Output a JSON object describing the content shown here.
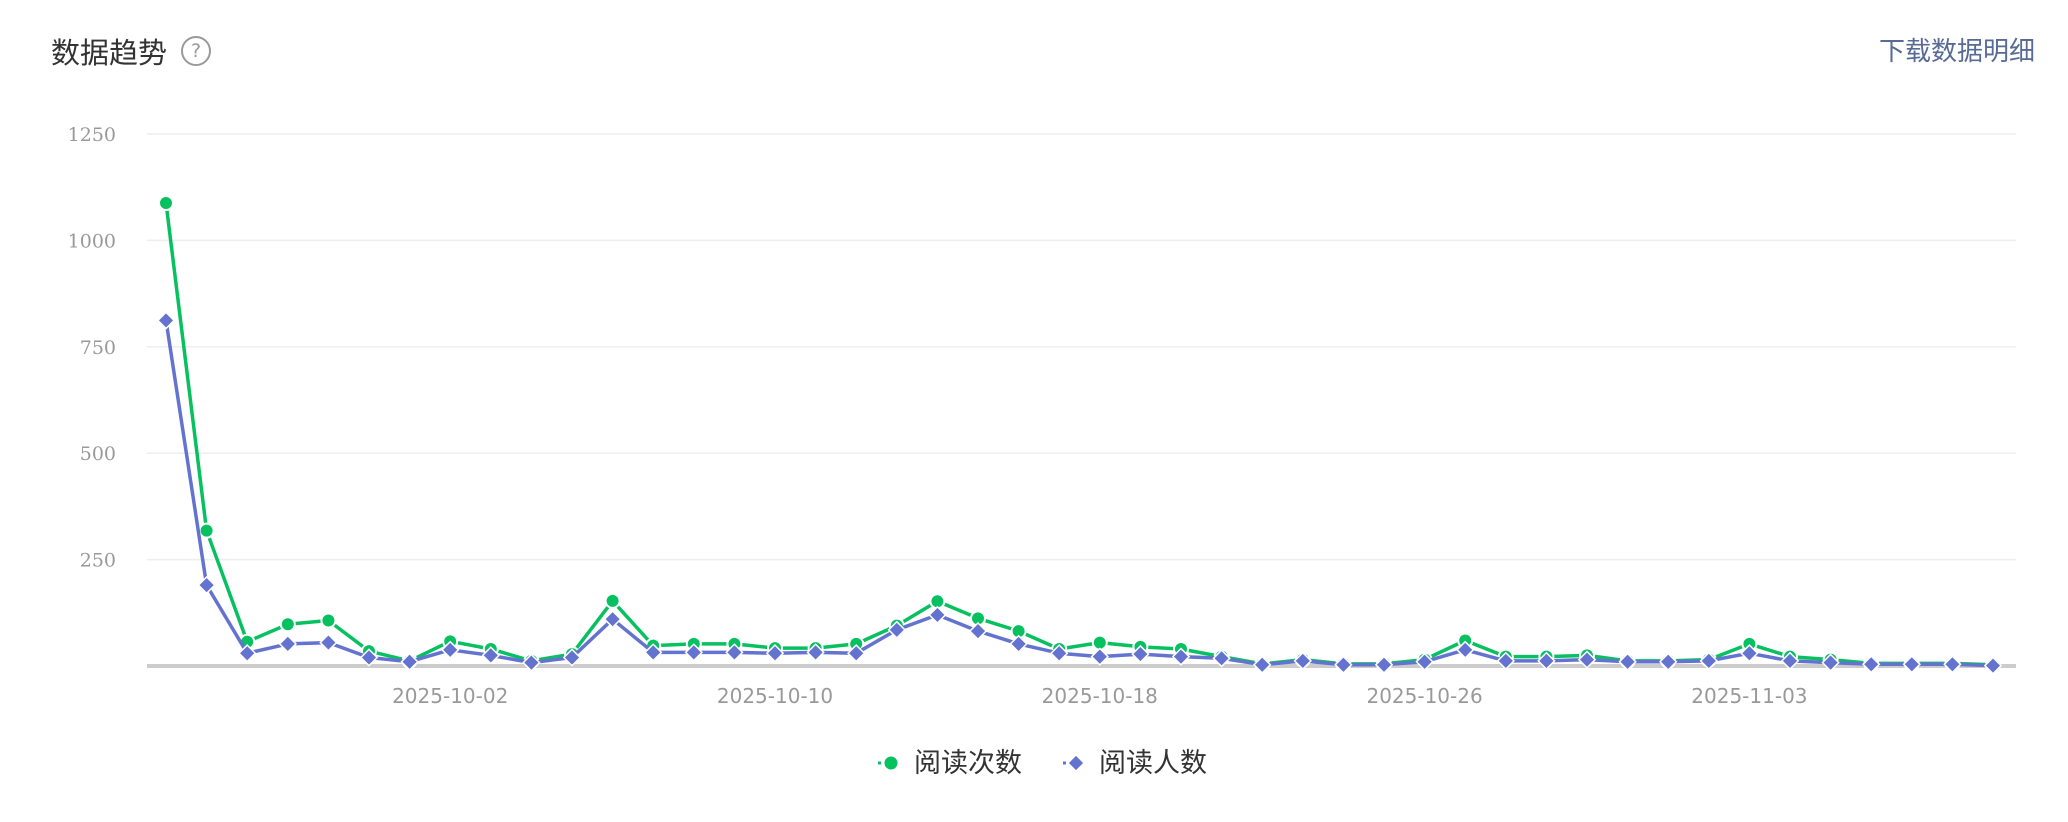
{
  "header": {
    "title": "数据趋势",
    "help_icon": "question-circle-icon",
    "help_glyph": "?",
    "download_label": "下载数据明细"
  },
  "colors": {
    "series_read_count": "#07c160",
    "series_reader_count": "#6473cf",
    "grid": "#eeeeee",
    "axis": "#cccccc",
    "link": "#576b95"
  },
  "chart_data": {
    "type": "line",
    "x_start": "2025-09-25",
    "x_tick_labels": [
      "2025-10-02",
      "2025-10-10",
      "2025-10-18",
      "2025-10-26",
      "2025-11-03"
    ],
    "y_ticks": [
      250,
      500,
      750,
      1000,
      1250
    ],
    "ylim": [
      0,
      1250
    ],
    "grid": true,
    "legend_position": "bottom-center",
    "x": [
      "2025-09-25",
      "2025-09-26",
      "2025-09-27",
      "2025-09-28",
      "2025-09-29",
      "2025-09-30",
      "2025-10-01",
      "2025-10-02",
      "2025-10-03",
      "2025-10-04",
      "2025-10-05",
      "2025-10-06",
      "2025-10-07",
      "2025-10-08",
      "2025-10-09",
      "2025-10-10",
      "2025-10-11",
      "2025-10-12",
      "2025-10-13",
      "2025-10-14",
      "2025-10-15",
      "2025-10-16",
      "2025-10-17",
      "2025-10-18",
      "2025-10-19",
      "2025-10-20",
      "2025-10-21",
      "2025-10-22",
      "2025-10-23",
      "2025-10-24",
      "2025-10-25",
      "2025-10-26",
      "2025-10-27",
      "2025-10-28",
      "2025-10-29",
      "2025-10-30",
      "2025-10-31",
      "2025-11-01",
      "2025-11-02",
      "2025-11-03",
      "2025-11-04",
      "2025-11-05",
      "2025-11-06",
      "2025-11-07",
      "2025-11-08",
      "2025-11-09"
    ],
    "series": [
      {
        "name": "阅读次数",
        "marker": "circle",
        "values": [
          1088,
          318,
          57,
          98,
          107,
          35,
          12,
          58,
          40,
          12,
          28,
          153,
          48,
          52,
          52,
          42,
          42,
          52,
          95,
          152,
          112,
          82,
          40,
          55,
          45,
          40,
          22,
          5,
          15,
          5,
          5,
          15,
          60,
          22,
          22,
          25,
          12,
          12,
          15,
          52,
          22,
          15,
          6,
          6,
          6,
          3
        ]
      },
      {
        "name": "阅读人数",
        "marker": "diamond",
        "values": [
          812,
          190,
          30,
          52,
          55,
          20,
          10,
          38,
          25,
          8,
          20,
          110,
          32,
          32,
          32,
          30,
          32,
          30,
          85,
          120,
          82,
          52,
          30,
          22,
          28,
          22,
          18,
          3,
          12,
          3,
          3,
          10,
          38,
          12,
          12,
          15,
          10,
          10,
          12,
          30,
          12,
          8,
          4,
          4,
          4,
          1
        ]
      }
    ]
  }
}
